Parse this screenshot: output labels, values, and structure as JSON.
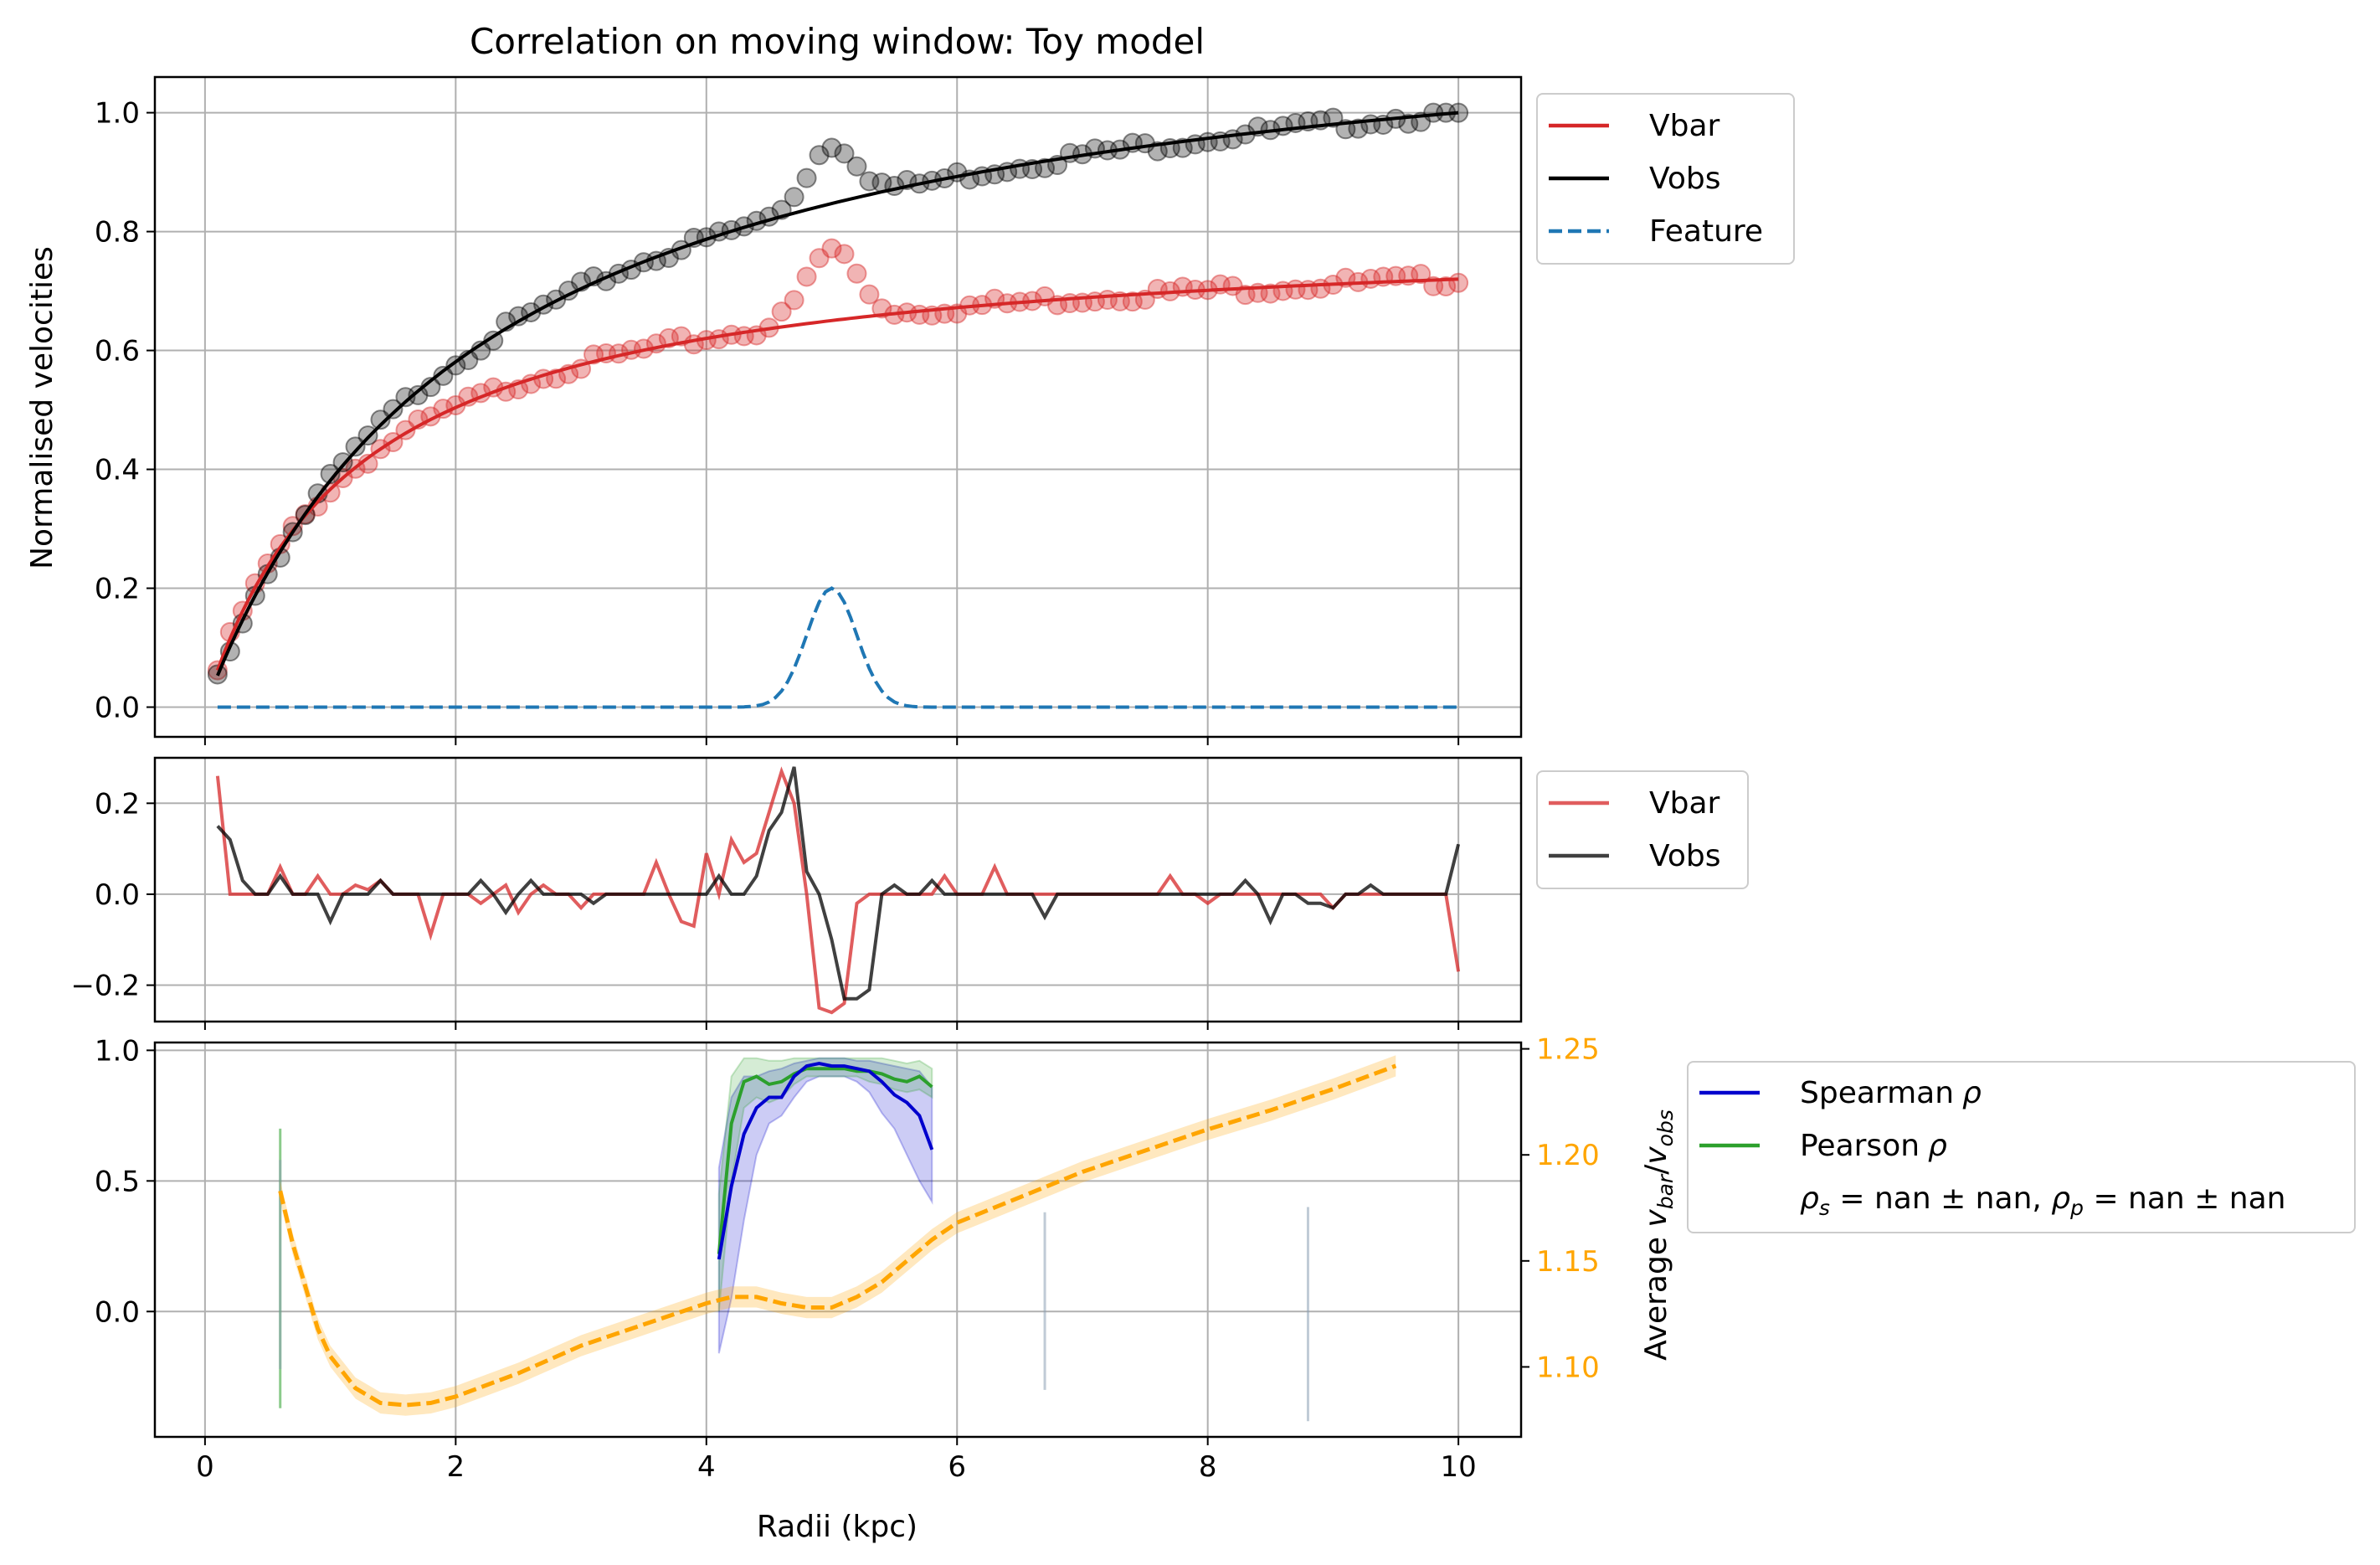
{
  "chart_data": [
    {
      "type": "line",
      "title": "Correlation on moving window: Toy model",
      "xlabel": "",
      "ylabel": "Normalised velocities",
      "xlim": [
        -0.4,
        10.5
      ],
      "ylim": [
        -0.05,
        1.06
      ],
      "x_ticks": [
        0,
        2,
        4,
        6,
        8,
        10
      ],
      "y_ticks": [
        0.0,
        0.2,
        0.4,
        0.6,
        0.8,
        1.0
      ],
      "x_tick_labels_shown": false,
      "grid": true,
      "legend_position": "outside-upper-right",
      "legend": [
        "Vbar",
        "Vobs",
        "Feature"
      ],
      "series": [
        {
          "name": "Vbar",
          "kind": "fit-line",
          "color": "#d62728",
          "model": "saturating curve rising from 0.07 at r=0.1 to 0.72 at r=10",
          "points": [
            [
              0.1,
              0.07
            ],
            [
              0.5,
              0.27
            ],
            [
              1,
              0.42
            ],
            [
              1.5,
              0.5
            ],
            [
              2,
              0.56
            ],
            [
              2.5,
              0.6
            ],
            [
              3,
              0.625
            ],
            [
              3.5,
              0.64
            ],
            [
              4,
              0.655
            ],
            [
              4.5,
              0.665
            ],
            [
              5,
              0.675
            ],
            [
              6,
              0.69
            ],
            [
              7,
              0.7
            ],
            [
              8,
              0.71
            ],
            [
              9,
              0.715
            ],
            [
              10,
              0.72
            ]
          ]
        },
        {
          "name": "Vobs",
          "kind": "fit-line",
          "color": "#000000",
          "model": "saturating curve rising from 0.08 at r=0.1 to 1.0 at r=10",
          "points": [
            [
              0.1,
              0.08
            ],
            [
              0.5,
              0.29
            ],
            [
              1,
              0.46
            ],
            [
              1.5,
              0.57
            ],
            [
              2,
              0.64
            ],
            [
              2.5,
              0.69
            ],
            [
              3,
              0.735
            ],
            [
              3.5,
              0.765
            ],
            [
              4,
              0.8
            ],
            [
              4.5,
              0.83
            ],
            [
              5,
              0.855
            ],
            [
              6,
              0.895
            ],
            [
              7,
              0.925
            ],
            [
              8,
              0.95
            ],
            [
              9,
              0.975
            ],
            [
              10,
              1.0
            ]
          ]
        },
        {
          "name": "Feature",
          "kind": "dashed-line",
          "color": "#1f77b4",
          "model": "gaussian bump of height 0.2 centred at r=5 with sigma 0.2, zero elsewhere",
          "points": [
            [
              0.1,
              0
            ],
            [
              4.3,
              0.0
            ],
            [
              4.5,
              0.04
            ],
            [
              4.7,
              0.1
            ],
            [
              4.85,
              0.17
            ],
            [
              5,
              0.2
            ],
            [
              5.15,
              0.17
            ],
            [
              5.3,
              0.1
            ],
            [
              5.5,
              0.04
            ],
            [
              5.7,
              0.0
            ],
            [
              10,
              0
            ]
          ]
        },
        {
          "name": "Vbar data",
          "kind": "markers",
          "color": "#d62728",
          "model": "Vbar curve plus feature bump with small noise, 100 points from 0.1 to 10",
          "feature_peak": [
            [
              4.6,
              0.72
            ],
            [
              4.8,
              0.76
            ],
            [
              5,
              0.79
            ],
            [
              5.2,
              0.75
            ],
            [
              5.4,
              0.71
            ]
          ]
        },
        {
          "name": "Vobs data",
          "kind": "markers",
          "color": "#000000",
          "model": "Vobs curve plus feature bump with small noise, 100 points from 0.1 to 10",
          "feature_peak": [
            [
              4.6,
              0.89
            ],
            [
              4.8,
              0.93
            ],
            [
              5,
              0.95
            ],
            [
              5.2,
              0.93
            ],
            [
              5.4,
              0.9
            ]
          ]
        }
      ]
    },
    {
      "type": "line",
      "xlim": [
        -0.4,
        10.5
      ],
      "ylim": [
        -0.28,
        0.3
      ],
      "x_ticks": [
        0,
        2,
        4,
        6,
        8,
        10
      ],
      "y_ticks": [
        -0.2,
        0.0,
        0.2
      ],
      "x_tick_labels_shown": false,
      "grid": true,
      "legend_position": "outside-upper-right",
      "legend": [
        "Vbar",
        "Vobs"
      ],
      "series": [
        {
          "name": "Vbar",
          "color": "#d62728",
          "opacity": 0.75,
          "x": [
            0.1,
            0.2,
            0.3,
            0.4,
            0.5,
            0.6,
            0.7,
            0.8,
            0.9,
            1.0,
            1.1,
            1.2,
            1.3,
            1.4,
            1.5,
            1.6,
            1.7,
            1.8,
            1.9,
            2.0,
            2.1,
            2.2,
            2.3,
            2.4,
            2.5,
            2.6,
            2.7,
            2.8,
            2.9,
            3.0,
            3.1,
            3.2,
            3.3,
            3.4,
            3.5,
            3.6,
            3.7,
            3.8,
            3.9,
            4.0,
            4.1,
            4.2,
            4.3,
            4.4,
            4.5,
            4.6,
            4.7,
            4.8,
            4.9,
            5.0,
            5.1,
            5.2,
            5.3,
            5.4,
            5.5,
            5.6,
            5.7,
            5.8,
            5.9,
            6.0,
            6.1,
            6.2,
            6.3,
            6.4,
            6.5,
            6.6,
            6.7,
            6.8,
            6.9,
            7.0,
            7.1,
            7.2,
            7.3,
            7.4,
            7.5,
            7.6,
            7.7,
            7.8,
            7.9,
            8.0,
            8.1,
            8.2,
            8.3,
            8.4,
            8.5,
            8.6,
            8.7,
            8.8,
            8.9,
            9.0,
            9.1,
            9.2,
            9.3,
            9.4,
            9.5,
            9.6,
            9.7,
            9.8,
            9.9,
            10.0
          ],
          "y": [
            0.26,
            0.0,
            0.0,
            0.0,
            0.0,
            0.06,
            0.0,
            0.0,
            0.04,
            0.0,
            0.0,
            0.02,
            0.01,
            0.03,
            0.0,
            0.0,
            0.0,
            -0.09,
            0.0,
            0.0,
            0.0,
            -0.02,
            0.0,
            0.02,
            -0.04,
            0.0,
            0.02,
            0.0,
            0.0,
            -0.03,
            0.0,
            0.0,
            0.0,
            0.0,
            0.0,
            0.07,
            0.0,
            -0.06,
            -0.07,
            0.09,
            0.0,
            0.12,
            0.07,
            0.09,
            0.18,
            0.27,
            0.2,
            0.0,
            -0.25,
            -0.26,
            -0.24,
            -0.02,
            0.0,
            0.0,
            0.0,
            0.0,
            0.0,
            0.0,
            0.04,
            0.0,
            0.0,
            0.0,
            0.06,
            0.0,
            0.0,
            0.0,
            0.0,
            0.0,
            0.0,
            0.0,
            0.0,
            0.0,
            0.0,
            0.0,
            0.0,
            0.0,
            0.04,
            0.0,
            0.0,
            -0.02,
            0.0,
            0.0,
            0.0,
            0.0,
            0.0,
            0.0,
            0.0,
            0.0,
            0.0,
            -0.03,
            0.0,
            0.0,
            0.0,
            0.0,
            0.0,
            0.0,
            0.0,
            0.0,
            0.0,
            -0.17
          ]
        },
        {
          "name": "Vobs",
          "color": "#000000",
          "opacity": 0.75,
          "x": [
            0.1,
            0.2,
            0.3,
            0.4,
            0.5,
            0.6,
            0.7,
            0.8,
            0.9,
            1.0,
            1.1,
            1.2,
            1.3,
            1.4,
            1.5,
            1.6,
            1.7,
            1.8,
            1.9,
            2.0,
            2.1,
            2.2,
            2.3,
            2.4,
            2.5,
            2.6,
            2.7,
            2.8,
            2.9,
            3.0,
            3.1,
            3.2,
            3.3,
            3.4,
            3.5,
            3.6,
            3.7,
            3.8,
            3.9,
            4.0,
            4.1,
            4.2,
            4.3,
            4.4,
            4.5,
            4.6,
            4.7,
            4.8,
            4.9,
            5.0,
            5.1,
            5.2,
            5.3,
            5.4,
            5.5,
            5.6,
            5.7,
            5.8,
            5.9,
            6.0,
            6.1,
            6.2,
            6.3,
            6.4,
            6.5,
            6.6,
            6.7,
            6.8,
            6.9,
            7.0,
            7.1,
            7.2,
            7.3,
            7.4,
            7.5,
            7.6,
            7.7,
            7.8,
            7.9,
            8.0,
            8.1,
            8.2,
            8.3,
            8.4,
            8.5,
            8.6,
            8.7,
            8.8,
            8.9,
            9.0,
            9.1,
            9.2,
            9.3,
            9.4,
            9.5,
            9.6,
            9.7,
            9.8,
            9.9,
            10.0
          ],
          "y": [
            0.15,
            0.12,
            0.03,
            0.0,
            0.0,
            0.04,
            0.0,
            0.0,
            0.0,
            -0.06,
            0.0,
            0.0,
            0.0,
            0.03,
            0.0,
            0.0,
            0.0,
            0.0,
            0.0,
            0.0,
            0.0,
            0.03,
            0.0,
            -0.04,
            0.0,
            0.03,
            0.0,
            0.0,
            0.0,
            0.0,
            -0.02,
            0.0,
            0.0,
            0.0,
            0.0,
            0.0,
            0.0,
            0.0,
            0.0,
            0.0,
            0.04,
            0.0,
            0.0,
            0.04,
            0.14,
            0.18,
            0.28,
            0.05,
            0.0,
            -0.1,
            -0.23,
            -0.23,
            -0.21,
            0.0,
            0.02,
            0.0,
            0.0,
            0.03,
            0.0,
            0.0,
            0.0,
            0.0,
            0.0,
            0.0,
            0.0,
            0.0,
            -0.05,
            0.0,
            0.0,
            0.0,
            0.0,
            0.0,
            0.0,
            0.0,
            0.0,
            0.0,
            0.0,
            0.0,
            0.0,
            0.0,
            0.0,
            0.0,
            0.03,
            0.0,
            -0.06,
            0.0,
            0.0,
            -0.02,
            -0.02,
            -0.03,
            0.0,
            0.0,
            0.02,
            0.0,
            0.0,
            0.0,
            0.0,
            0.0,
            0.0,
            0.11
          ]
        }
      ]
    },
    {
      "type": "line",
      "xlabel": "Radii (kpc)",
      "ylabel_right": "Average $v_{bar}/v_{obs}$",
      "xlim": [
        -0.4,
        10.5
      ],
      "ylim": [
        -0.48,
        1.03
      ],
      "ylim_right": [
        1.067,
        1.253
      ],
      "x_ticks": [
        0,
        2,
        4,
        6,
        8,
        10
      ],
      "y_ticks": [
        0.0,
        0.5,
        1.0
      ],
      "y_ticks_right": [
        1.1,
        1.15,
        1.2,
        1.25
      ],
      "right_axis_color": "#ffa500",
      "grid": true,
      "legend_position": "outside-upper-right",
      "legend": [
        "Spearman ρ",
        "Pearson ρ",
        "ρs = nan ± nan, ρp = nan ± nan"
      ],
      "series": [
        {
          "name": "Spearman ρ",
          "color": "#0000cd",
          "x": [
            4.1,
            4.2,
            4.3,
            4.4,
            4.5,
            4.6,
            4.7,
            4.8,
            4.9,
            5.0,
            5.1,
            5.2,
            5.3,
            5.4,
            5.5,
            5.6,
            5.7,
            5.8
          ],
          "y": [
            0.2,
            0.48,
            0.68,
            0.78,
            0.82,
            0.82,
            0.9,
            0.94,
            0.95,
            0.94,
            0.94,
            0.93,
            0.92,
            0.88,
            0.83,
            0.8,
            0.75,
            0.62
          ],
          "band_lower": [
            -0.16,
            0.05,
            0.35,
            0.6,
            0.72,
            0.75,
            0.82,
            0.88,
            0.9,
            0.9,
            0.9,
            0.88,
            0.84,
            0.76,
            0.7,
            0.6,
            0.5,
            0.42
          ],
          "band_upper": [
            0.55,
            0.82,
            0.9,
            0.9,
            0.92,
            0.93,
            0.95,
            0.96,
            0.97,
            0.97,
            0.97,
            0.96,
            0.96,
            0.95,
            0.94,
            0.93,
            0.92,
            0.86
          ]
        },
        {
          "name": "Pearson ρ",
          "color": "#2ca02c",
          "x": [
            4.1,
            4.2,
            4.3,
            4.4,
            4.5,
            4.6,
            4.7,
            4.8,
            4.9,
            5.0,
            5.1,
            5.2,
            5.3,
            5.4,
            5.5,
            5.6,
            5.7,
            5.8
          ],
          "y": [
            0.22,
            0.72,
            0.88,
            0.9,
            0.87,
            0.88,
            0.91,
            0.93,
            0.93,
            0.93,
            0.93,
            0.92,
            0.92,
            0.91,
            0.89,
            0.88,
            0.9,
            0.86
          ],
          "band_lower": [
            0.0,
            0.5,
            0.78,
            0.82,
            0.8,
            0.82,
            0.87,
            0.9,
            0.9,
            0.9,
            0.9,
            0.9,
            0.88,
            0.87,
            0.85,
            0.84,
            0.85,
            0.82
          ],
          "band_upper": [
            0.45,
            0.9,
            0.97,
            0.97,
            0.96,
            0.96,
            0.97,
            0.97,
            0.97,
            0.97,
            0.97,
            0.97,
            0.97,
            0.97,
            0.96,
            0.95,
            0.96,
            0.93
          ]
        },
        {
          "name": "Average v_bar/v_obs",
          "axis": "right",
          "color": "#ffa500",
          "dashed": true,
          "x": [
            0.6,
            0.7,
            0.8,
            0.9,
            1.0,
            1.2,
            1.4,
            1.6,
            1.8,
            2.0,
            2.5,
            3.0,
            3.5,
            4.0,
            4.2,
            4.4,
            4.6,
            4.8,
            5.0,
            5.2,
            5.4,
            5.6,
            5.8,
            6.0,
            6.5,
            7.0,
            7.5,
            8.0,
            8.5,
            9.0,
            9.5
          ],
          "y": [
            1.183,
            1.158,
            1.138,
            1.118,
            1.105,
            1.09,
            1.083,
            1.082,
            1.083,
            1.086,
            1.097,
            1.11,
            1.12,
            1.13,
            1.133,
            1.133,
            1.13,
            1.128,
            1.128,
            1.133,
            1.14,
            1.15,
            1.16,
            1.168,
            1.18,
            1.192,
            1.202,
            1.212,
            1.221,
            1.231,
            1.242
          ],
          "band_halfwidth": 0.005
        },
        {
          "name": "spikes",
          "kind": "vertical-segments",
          "segments": [
            {
              "x": 0.6,
              "ymin": -0.37,
              "ymax": 0.7,
              "color": "#2ca02c"
            },
            {
              "x": 0.6,
              "ymin": -0.22,
              "ymax": 0.58,
              "color": "#8ca0b4"
            },
            {
              "x": 6.7,
              "ymin": -0.3,
              "ymax": 0.38,
              "color": "#8ca0b4"
            },
            {
              "x": 8.8,
              "ymin": -0.42,
              "ymax": 0.4,
              "color": "#8ca0b4"
            }
          ]
        }
      ]
    }
  ],
  "legend_labels": {
    "vbar": "Vbar",
    "vobs": "Vobs",
    "feature": "Feature",
    "spearman": "Spearman",
    "pearson": "Pearson",
    "rho_symbol": "ρ",
    "rho_s": "ρ",
    "sub_s": "s",
    "rho_p": "ρ",
    "sub_p": "p",
    "eq": " = nan ± nan, ",
    "eq_end": " = nan ± nan"
  },
  "right_axis_label": {
    "prefix": "Average ",
    "v1": "v",
    "sub1": "bar",
    "slash": "/",
    "v2": "v",
    "sub2": "obs"
  },
  "colors": {
    "vbar": "#d62728",
    "vobs": "#000000",
    "feature": "#1f77b4",
    "spearman": "#0000cd",
    "pearson": "#2ca02c",
    "average": "#ffa500"
  }
}
